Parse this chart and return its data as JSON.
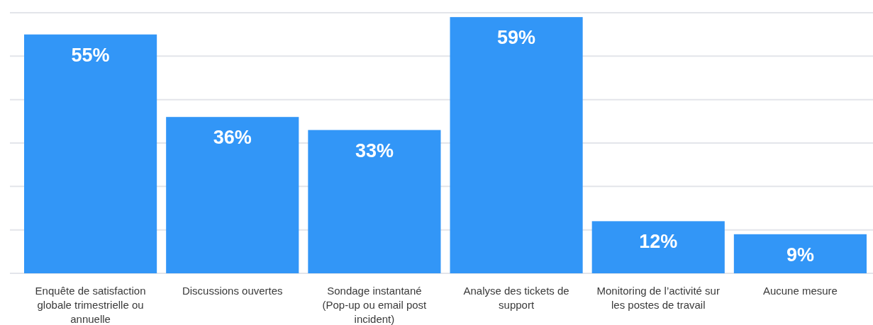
{
  "chart_data": {
    "type": "bar",
    "categories": [
      "Enquête de satisfaction globale trimestrielle ou annuelle",
      "Discussions ouvertes",
      "Sondage instantané (Pop-up ou email post incident)",
      "Analyse des tickets de support",
      "Monitoring de l’activité sur les postes de travail",
      "Aucune mesure"
    ],
    "values": [
      55,
      36,
      33,
      59,
      12,
      9
    ],
    "value_labels": [
      "55%",
      "36%",
      "33%",
      "59%",
      "12%",
      "9%"
    ],
    "color": "#3296f7",
    "ylim": [
      0,
      60
    ],
    "yticks": [
      {
        "value": 0,
        "label": null
      },
      {
        "value": 10,
        "label": null
      },
      {
        "value": 20,
        "label": null
      },
      {
        "value": 30,
        "label": null
      },
      {
        "value": 40,
        "label": null
      },
      {
        "value": 50,
        "label": null
      },
      {
        "value": 60,
        "label": null
      }
    ],
    "grid": "y",
    "tick_labels": "x"
  }
}
